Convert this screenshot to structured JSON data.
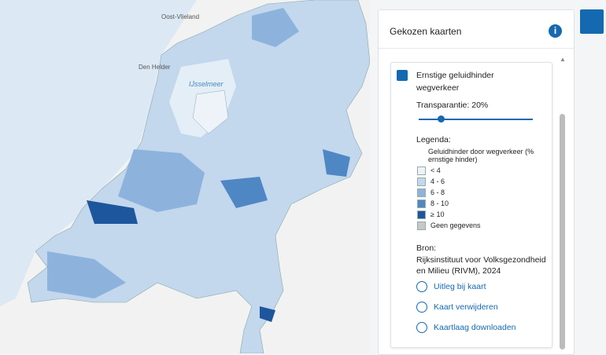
{
  "map": {
    "labels": [
      "Oost-Vlieland",
      "Den Helder",
      "IJsselmeer"
    ]
  },
  "panel": {
    "title": "Gekozen kaarten",
    "layer": {
      "name": "Ernstige geluidhinder wegverkeer",
      "transparency": "Transparantie: 20%",
      "legend_title": "Legenda:",
      "legend_subtitle": "Geluidhinder door wegverkeer (% ernstige hinder)",
      "legend_items": [
        {
          "label": "< 4",
          "color": "#eef3fa"
        },
        {
          "label": "4 - 6",
          "color": "#c3d7ed"
        },
        {
          "label": "6 - 8",
          "color": "#8db3dd"
        },
        {
          "label": "8 - 10",
          "color": "#4f87c4"
        },
        {
          "label": "≥ 10",
          "color": "#1d569c"
        },
        {
          "label": "Geen gegevens",
          "color": "#c8c8c8"
        }
      ],
      "source_title": "Bron:",
      "source": "Rijksinstituut voor Volksgezondheid en Milieu (RIVM), 2024",
      "actions": [
        "Uitleg bij kaart",
        "Kaart verwijderen",
        "Kaartlaag downloaden"
      ]
    }
  }
}
